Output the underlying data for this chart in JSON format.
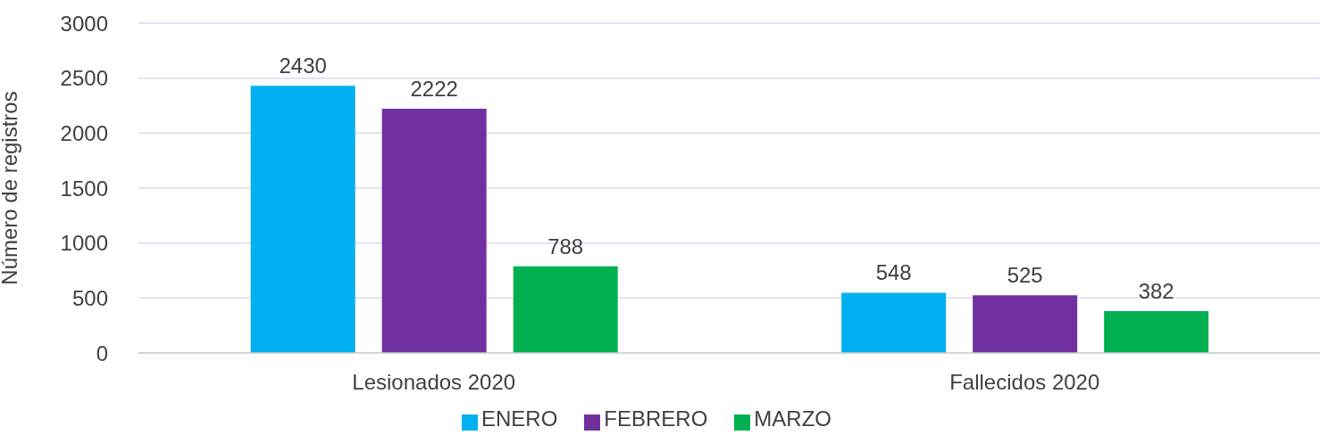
{
  "chart_data": {
    "type": "bar",
    "ylabel": "Número de registros",
    "categories": [
      "Lesionados 2020",
      "Fallecidos 2020"
    ],
    "series": [
      {
        "name": "ENERO",
        "color": "#00b0f0",
        "values": [
          2430,
          548
        ]
      },
      {
        "name": "FEBRERO",
        "color": "#7030a0",
        "values": [
          2222,
          525
        ]
      },
      {
        "name": "MARZO",
        "color": "#00b050",
        "values": [
          788,
          382
        ]
      }
    ],
    "ylim": [
      0,
      3000
    ],
    "yticks": [
      0,
      500,
      1000,
      1500,
      2000,
      2500,
      3000
    ],
    "grid": "y",
    "legend": "bottom",
    "data_labels": true
  }
}
